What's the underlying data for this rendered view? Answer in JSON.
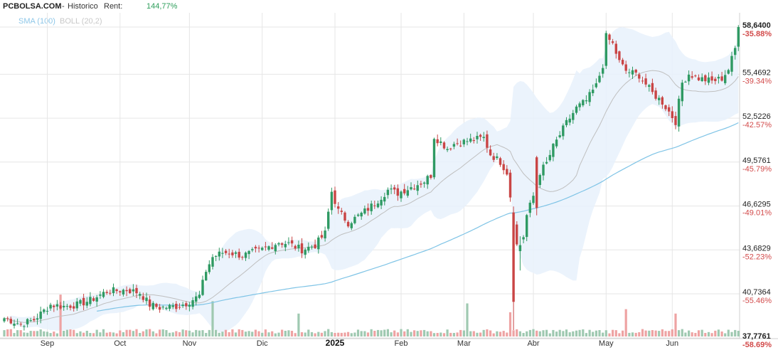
{
  "header": {
    "site": "PCBOLSA.COM",
    "separator": " - ",
    "mode": "Historico",
    "rent_label": "Rent:",
    "rent_value": "144,77%"
  },
  "legend": {
    "sma_label": "SMA (100)",
    "boll_label": "BOLL (20,2)"
  },
  "colors": {
    "up": "#2f9a63",
    "down": "#c94545",
    "sma": "#7fc4e6",
    "boll_mid": "#bfbfbf",
    "boll_band": "#e8f1fb",
    "vol_up": "#9fc9b1",
    "vol_down": "#eea3a3",
    "grid": "#e6e6e6",
    "pct_text": "#d24a4a"
  },
  "chart_data": {
    "type": "candlestick",
    "y_ticks": [
      {
        "value": "58,6400",
        "pct": "-35.88%"
      },
      {
        "value": "55,4692",
        "pct": "-39.34%"
      },
      {
        "value": "52,5226",
        "pct": "-42.57%"
      },
      {
        "value": "49,5761",
        "pct": "-45.79%"
      },
      {
        "value": "46,6295",
        "pct": "-49.01%"
      },
      {
        "value": "43,6829",
        "pct": "-52.23%"
      },
      {
        "value": "40,7364",
        "pct": "-55.46%"
      },
      {
        "value": "37,7761",
        "pct": "-58.69%"
      }
    ],
    "ylim": [
      37.7761,
      58.64
    ],
    "x_labels": [
      "Sep",
      "Oct",
      "Nov",
      "Dic",
      "2025",
      "Feb",
      "Mar",
      "Abr",
      "May",
      "Jun"
    ],
    "x_label_days": [
      13,
      35,
      56,
      78,
      100,
      120,
      139,
      160,
      182,
      202
    ],
    "last_close": 58.64,
    "waypoints_day_close": [
      [
        0,
        39.1
      ],
      [
        5,
        38.7
      ],
      [
        9,
        39.0
      ],
      [
        14,
        40.0
      ],
      [
        18,
        39.9
      ],
      [
        22,
        40.0
      ],
      [
        26,
        40.3
      ],
      [
        31,
        40.9
      ],
      [
        37,
        41.0
      ],
      [
        41,
        40.8
      ],
      [
        44,
        40.0
      ],
      [
        47,
        39.8
      ],
      [
        52,
        39.9
      ],
      [
        55,
        40.1
      ],
      [
        59,
        40.6
      ],
      [
        61,
        42.3
      ],
      [
        63,
        43.2
      ],
      [
        66,
        43.5
      ],
      [
        68,
        43.5
      ],
      [
        72,
        43.3
      ],
      [
        78,
        43.7
      ],
      [
        83,
        44.2
      ],
      [
        86,
        44.1
      ],
      [
        90,
        43.7
      ],
      [
        94,
        44.0
      ],
      [
        97,
        44.8
      ],
      [
        99,
        47.6
      ],
      [
        101,
        46.3
      ],
      [
        104,
        45.5
      ],
      [
        108,
        46.1
      ],
      [
        112,
        46.8
      ],
      [
        116,
        47.7
      ],
      [
        119,
        47.5
      ],
      [
        123,
        47.9
      ],
      [
        127,
        48.3
      ],
      [
        129,
        48.7
      ],
      [
        130,
        51.3
      ],
      [
        134,
        50.5
      ],
      [
        136,
        50.8
      ],
      [
        140,
        51.0
      ],
      [
        145,
        51.2
      ],
      [
        147,
        50.1
      ],
      [
        150,
        49.6
      ],
      [
        152,
        48.9
      ],
      [
        153,
        47.3
      ],
      [
        155,
        44.0
      ],
      [
        157,
        44.6
      ],
      [
        158,
        46.0
      ],
      [
        160,
        47.3
      ],
      [
        162,
        48.9
      ],
      [
        164,
        49.5
      ],
      [
        166,
        50.6
      ],
      [
        170,
        52.2
      ],
      [
        173,
        53.2
      ],
      [
        176,
        53.7
      ],
      [
        179,
        54.7
      ],
      [
        181,
        56.1
      ],
      [
        182,
        58.0
      ],
      [
        184,
        57.5
      ],
      [
        186,
        56.3
      ],
      [
        188,
        55.7
      ],
      [
        192,
        55.4
      ],
      [
        196,
        54.2
      ],
      [
        199,
        53.6
      ],
      [
        203,
        52.3
      ],
      [
        205,
        54.9
      ],
      [
        207,
        55.5
      ],
      [
        210,
        55.2
      ],
      [
        214,
        55.0
      ],
      [
        217,
        55.2
      ],
      [
        219,
        55.8
      ],
      [
        221,
        57.2
      ],
      [
        222,
        58.64
      ]
    ],
    "special_candles_day_open_high_low_close": [
      [
        154,
        46.2,
        46.6,
        38.3,
        40.2
      ],
      [
        156,
        43.6,
        44.6,
        42.3,
        44.0
      ],
      [
        161,
        49.9,
        50.0,
        46.0,
        46.5
      ]
    ],
    "volume_spikes_day_rel": [
      [
        17,
        0.95
      ],
      [
        63,
        0.8
      ],
      [
        89,
        0.52
      ],
      [
        140,
        0.75
      ],
      [
        153,
        0.55
      ],
      [
        188,
        0.62
      ],
      [
        203,
        0.52
      ]
    ]
  }
}
